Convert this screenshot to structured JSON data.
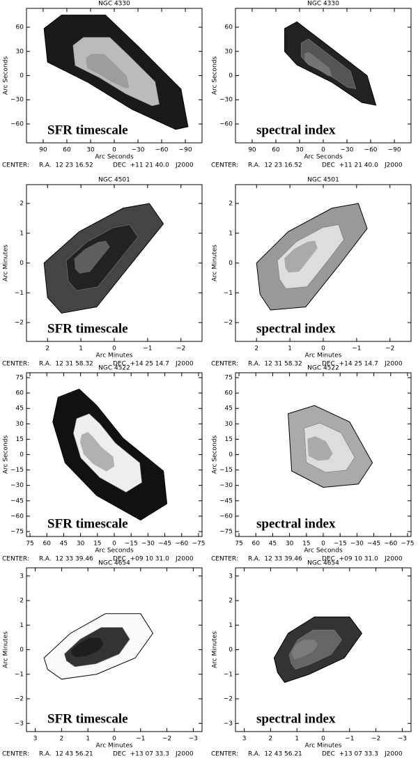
{
  "panels": [
    {
      "title": "NGC 4330",
      "x_label": "Arc Seconds",
      "y_label": "Arc Seconds",
      "x_ticks": [
        "90",
        "60",
        "30",
        "0",
        "−30",
        "−60",
        "−90"
      ],
      "y_ticks": [
        "60",
        "30",
        "0",
        "−30",
        "−60"
      ],
      "center": [
        "CENTER:",
        "R.A.  12 23 16.52",
        "DEC  +11 21 40.0",
        "J2000"
      ],
      "label": "SFR timescale"
    },
    {
      "title": "NGC 4330",
      "x_label": "Arc Seconds",
      "y_label": "Arc Seconds",
      "x_ticks": [
        "90",
        "60",
        "30",
        "0",
        "−30",
        "−60",
        "−90"
      ],
      "y_ticks": [
        "60",
        "30",
        "0",
        "−30",
        "−60"
      ],
      "center": [
        "CENTER:",
        "R.A.  12 23 16.52",
        "DEC  +11 21 40.0",
        "J2000"
      ],
      "label": "spectral index"
    },
    {
      "title": "NGC 4501",
      "x_label": "Arc Minutes",
      "y_label": "Arc Minutes",
      "x_ticks": [
        "2",
        "1",
        "0",
        "−1",
        "−2"
      ],
      "y_ticks": [
        "2",
        "1",
        "0",
        "−1",
        "−2"
      ],
      "center": [
        "CENTER:",
        "R.A.  12 31 58.32",
        "DEC  +14 25 14.7",
        "J2000"
      ],
      "label": "SFR timescale"
    },
    {
      "title": "NGC 4501",
      "x_label": "Arc Minutes",
      "y_label": "Arc Minutes",
      "x_ticks": [
        "2",
        "1",
        "0",
        "−1",
        "−2"
      ],
      "y_ticks": [
        "2",
        "1",
        "0",
        "−1",
        "−2"
      ],
      "center": [
        "CENTER:",
        "R.A.  12 31 58.32",
        "DEC  +14 25 14.7",
        "J2000"
      ],
      "label": "spectral index"
    },
    {
      "title": "NGC 4522",
      "x_label": "Arc Seconds",
      "y_label": "Arc Seconds",
      "x_ticks": [
        "75",
        "60",
        "45",
        "30",
        "15",
        "0",
        "−15",
        "−30",
        "−45",
        "−60",
        "−75"
      ],
      "y_ticks": [
        "75",
        "60",
        "45",
        "30",
        "15",
        "0",
        "−15",
        "−30",
        "−45",
        "−60",
        "−75"
      ],
      "center": [
        "CENTER:",
        "R.A.  12 33 39.46",
        "DEC  +09 10 31.0",
        "J2000"
      ],
      "label": "SFR timescale"
    },
    {
      "title": "NGC 4522",
      "x_label": "Arc Seconds",
      "y_label": "Arc Seconds",
      "x_ticks": [
        "75",
        "60",
        "45",
        "30",
        "15",
        "0",
        "−15",
        "−30",
        "−45",
        "−60",
        "−75"
      ],
      "y_ticks": [
        "75",
        "60",
        "45",
        "30",
        "15",
        "0",
        "−15",
        "−30",
        "−45",
        "−60",
        "−75"
      ],
      "center": [
        "CENTER:",
        "R.A.  12 33 39.46",
        "DEC  +09 10 31.0",
        "J2000"
      ],
      "label": "spectral index"
    },
    {
      "title": "NGC 4654",
      "x_label": "Arc Minutes",
      "y_label": "Arc Minutes",
      "x_ticks": [
        "3",
        "2",
        "1",
        "0",
        "−1",
        "−2",
        "−3"
      ],
      "y_ticks": [
        "3",
        "2",
        "1",
        "0",
        "−1",
        "−2",
        "−3"
      ],
      "center": [
        "CENTER:",
        "R.A.  12 43 56.21",
        "DEC  +13 07 33.3",
        "J2000"
      ],
      "label": "SFR timescale"
    },
    {
      "title": "NGC 4654",
      "x_label": "Arc Minutes",
      "y_label": "Arc Minutes",
      "x_ticks": [
        "3",
        "2",
        "1",
        "0",
        "−1",
        "−2",
        "−3"
      ],
      "y_ticks": [
        "3",
        "2",
        "1",
        "0",
        "−1",
        "−2",
        "−3"
      ],
      "center": [
        "CENTER:",
        "R.A.  12 43 56.21",
        "DEC  +13 07 33.3",
        "J2000"
      ],
      "label": "spectral index"
    }
  ]
}
